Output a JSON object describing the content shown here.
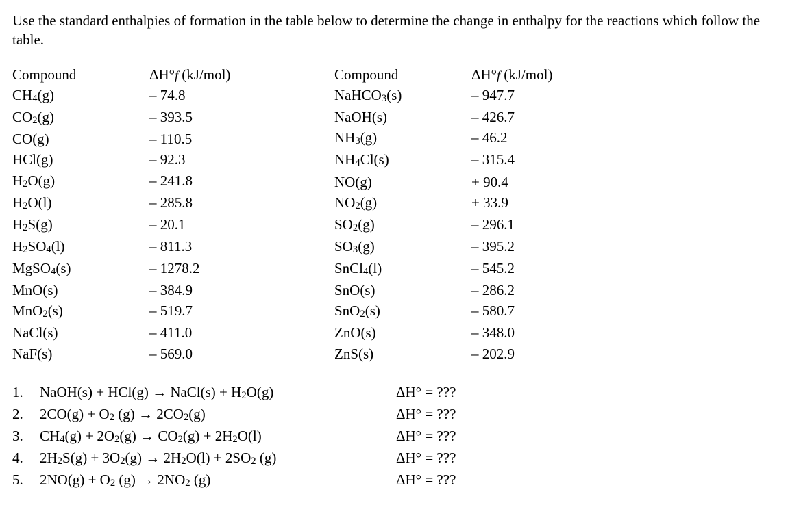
{
  "prompt": "Use the standard enthalpies of formation in the table below to determine the change in enthalpy for the reactions which follow the table.",
  "header_compound": "Compound",
  "header_dHf_prefix": "ΔH°",
  "header_dHf_sub": "f",
  "header_dHf_units": " (kJ/mol)",
  "left_rows": [
    {
      "c": "CH",
      "s": "4",
      "p": "(g)",
      "v": "– 74.8"
    },
    {
      "c": "CO",
      "s": "2",
      "p": "(g)",
      "v": "– 393.5"
    },
    {
      "c": "CO",
      "s": "",
      "p": "(g)",
      "v": "– 110.5"
    },
    {
      "c": "HCl",
      "s": "",
      "p": "(g)",
      "v": "– 92.3"
    },
    {
      "c": "H",
      "s": "2",
      "p": "O(g)",
      "v": "– 241.8"
    },
    {
      "c": "H",
      "s": "2",
      "p": "O(l)",
      "v": "– 285.8"
    },
    {
      "c": "H",
      "s": "2",
      "p": "S(g)",
      "v": "– 20.1"
    },
    {
      "c": "H",
      "s": "2",
      "p": "SO",
      "s2": "4",
      "p2": "(l)",
      "v": "– 811.3"
    },
    {
      "c": "MgSO",
      "s": "4",
      "p": "(s)",
      "v": "– 1278.2"
    },
    {
      "c": "MnO",
      "s": "",
      "p": "(s)",
      "v": "– 384.9"
    },
    {
      "c": "MnO",
      "s": "2",
      "p": "(s)",
      "v": "– 519.7"
    },
    {
      "c": "NaCl",
      "s": "",
      "p": "(s)",
      "v": "– 411.0"
    },
    {
      "c": "NaF",
      "s": "",
      "p": "(s)",
      "v": "– 569.0"
    }
  ],
  "right_rows": [
    {
      "c": "NaHCO",
      "s": "3",
      "p": "(s)",
      "v": "– 947.7"
    },
    {
      "c": "NaOH",
      "s": "",
      "p": "(s)",
      "v": "– 426.7"
    },
    {
      "c": "NH",
      "s": "3",
      "p": "(g)",
      "v": "– 46.2"
    },
    {
      "c": "NH",
      "s": "4",
      "p": "Cl(s)",
      "v": "– 315.4"
    },
    {
      "c": "NO",
      "s": "",
      "p": "(g)",
      "v": "+ 90.4"
    },
    {
      "c": "NO",
      "s": "2",
      "p": "(g)",
      "v": "+ 33.9"
    },
    {
      "c": "SO",
      "s": "2",
      "p": "(g)",
      "v": "– 296.1"
    },
    {
      "c": "SO",
      "s": "3",
      "p": "(g)",
      "v": "– 395.2"
    },
    {
      "c": "SnCl",
      "s": "4",
      "p": "(l)",
      "v": "– 545.2"
    },
    {
      "c": "SnO",
      "s": "",
      "p": "(s)",
      "v": "– 286.2"
    },
    {
      "c": "SnO",
      "s": "2",
      "p": "(s)",
      "v": "– 580.7"
    },
    {
      "c": "ZnO",
      "s": "",
      "p": "(s)",
      "v": "– 348.0"
    },
    {
      "c": "ZnS",
      "s": "",
      "p": "(s)",
      "v": "– 202.9"
    }
  ],
  "reactions": [
    {
      "n": "1.",
      "eq": [
        {
          "t": "NaOH(s) + HCl(g) "
        },
        {
          "ar": true
        },
        {
          "t": " NaCl(s) + H"
        },
        {
          "s": "2"
        },
        {
          "t": "O(g)"
        }
      ]
    },
    {
      "n": "2.",
      "eq": [
        {
          "t": "2CO(g) + O"
        },
        {
          "s": "2"
        },
        {
          "t": " (g) "
        },
        {
          "ar": true
        },
        {
          "t": " 2CO"
        },
        {
          "s": "2"
        },
        {
          "t": "(g)"
        }
      ]
    },
    {
      "n": "3.",
      "eq": [
        {
          "t": "CH"
        },
        {
          "s": "4"
        },
        {
          "t": "(g) + 2O"
        },
        {
          "s": "2"
        },
        {
          "t": "(g) "
        },
        {
          "ar": true
        },
        {
          "t": " CO"
        },
        {
          "s": "2"
        },
        {
          "t": "(g) + 2H"
        },
        {
          "s": "2"
        },
        {
          "t": "O(l)"
        }
      ]
    },
    {
      "n": "4.",
      "eq": [
        {
          "t": "2H"
        },
        {
          "s": "2"
        },
        {
          "t": "S(g) + 3O"
        },
        {
          "s": "2"
        },
        {
          "t": "(g) "
        },
        {
          "ar": true
        },
        {
          "t": " 2H"
        },
        {
          "s": "2"
        },
        {
          "t": "O(l) + 2SO"
        },
        {
          "s": "2"
        },
        {
          "t": " (g)"
        }
      ]
    },
    {
      "n": "5.",
      "eq": [
        {
          "t": "2NO(g) + O"
        },
        {
          "s": "2"
        },
        {
          "t": " (g) "
        },
        {
          "ar": true
        },
        {
          "t": " 2NO"
        },
        {
          "s": "2"
        },
        {
          "t": " (g)"
        }
      ]
    }
  ],
  "delta_label_prefix": "ΔH° = ",
  "delta_value": "???",
  "arrow": "→"
}
